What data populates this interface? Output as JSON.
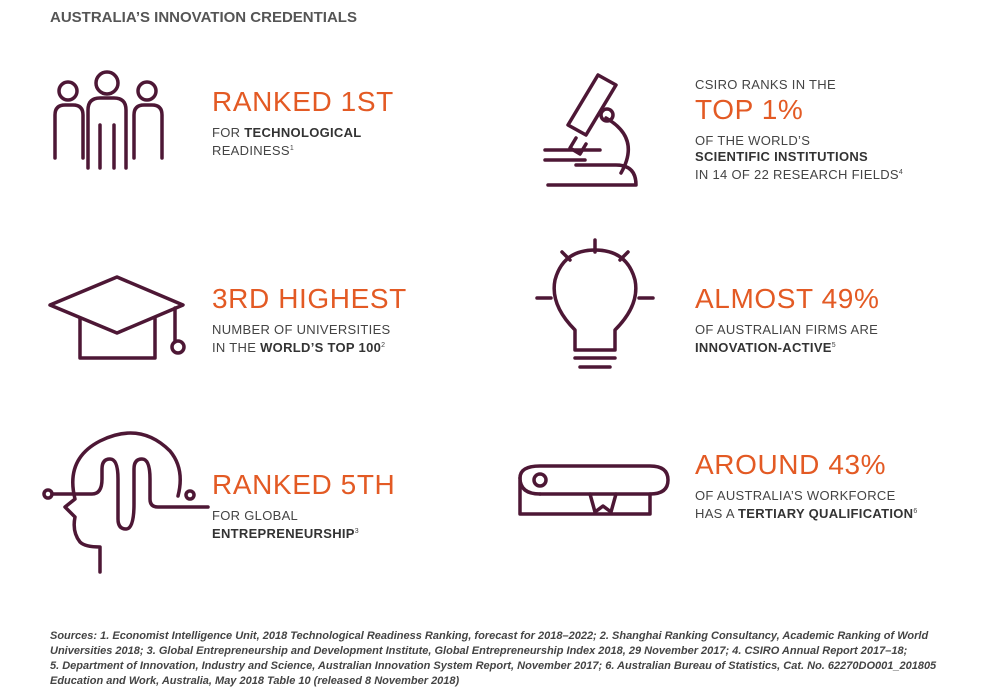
{
  "title": "AUSTRALIA’S INNOVATION CREDENTIALS",
  "items": [
    {
      "headline": "RANKED 1ST",
      "lines": [
        [
          {
            "text": "FOR "
          },
          {
            "text": "TECHNOLOGICAL",
            "style": "bold"
          }
        ],
        [
          {
            "text": "READINESS"
          },
          {
            "text": "1",
            "style": "sup"
          }
        ]
      ]
    },
    {
      "intro": "CSIRO RANKS IN THE",
      "headline": "TOP 1%",
      "lines": [
        [
          {
            "text": "OF THE WORLD’S"
          }
        ],
        [
          {
            "text": "SCIENTIFIC INSTITUTIONS",
            "style": "bold"
          }
        ],
        [
          {
            "text": "IN 14 OF 22 RESEARCH FIELDS"
          },
          {
            "text": "4",
            "style": "sup"
          }
        ]
      ]
    },
    {
      "headline": "3RD HIGHEST",
      "lines": [
        [
          {
            "text": "NUMBER OF UNIVERSITIES"
          }
        ],
        [
          {
            "text": "IN THE "
          },
          {
            "text": "WORLD’S TOP 100",
            "style": "bold"
          },
          {
            "text": "2",
            "style": "sup"
          }
        ]
      ]
    },
    {
      "headline": "ALMOST 49%",
      "lines": [
        [
          {
            "text": "OF AUSTRALIAN FIRMS ARE"
          }
        ],
        [
          {
            "text": "INNOVATION-ACTIVE",
            "style": "bold"
          },
          {
            "text": "5",
            "style": "sup"
          }
        ]
      ]
    },
    {
      "headline": "RANKED 5TH",
      "lines": [
        [
          {
            "text": "FOR GLOBAL"
          }
        ],
        [
          {
            "text": "ENTREPRENEURSHIP",
            "style": "bold"
          },
          {
            "text": "3",
            "style": "sup"
          }
        ]
      ]
    },
    {
      "headline": "AROUND 43%",
      "lines": [
        [
          {
            "text": "OF AUSTRALIA’S WORKFORCE"
          }
        ],
        [
          {
            "text": "HAS A "
          },
          {
            "text": "TERTIARY QUALIFICATION",
            "style": "bold"
          },
          {
            "text": "6",
            "style": "sup"
          }
        ]
      ]
    }
  ],
  "sources": [
    "Sources: 1. Economist Intelligence Unit, 2018 Technological Readiness Ranking, forecast for 2018–2022; 2. Shanghai Ranking Consultancy, Academic Ranking of World",
    "Universities 2018; 3. Global Entrepreneurship and Development Institute, Global Entrepreneurship Index 2018, 29 November 2017; 4. CSIRO Annual Report 2017–18;",
    "5. Department of Innovation, Industry and Science, Australian Innovation System Report, November 2017; 6. Australian Bureau of Statistics, Cat. No. 62270DO001_201805",
    "Education and Work, Australia, May 2018 Table 10 (released 8 November 2018)"
  ]
}
